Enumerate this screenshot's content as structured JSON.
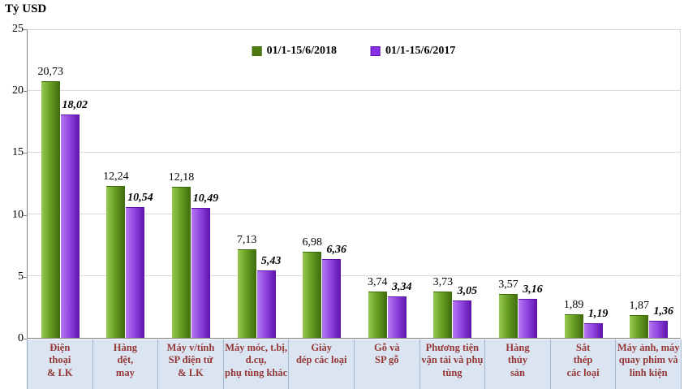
{
  "chart_data": {
    "type": "bar",
    "title": "",
    "ylabel": "Tỷ USD",
    "xlabel": "",
    "ylim": [
      0,
      25
    ],
    "yticks": [
      0,
      5,
      10,
      15,
      20,
      25
    ],
    "grid": true,
    "legend_position": "top-center",
    "categories": [
      "Điện thoại & LK",
      "Hàng dệt, may",
      "Máy v/tính SP điện tử & LK",
      "Máy móc, t.bị, d.cụ, phụ tùng khác",
      "Giày dép các loại",
      "Gỗ và SP gỗ",
      "Phương tiện vận tải và phụ tùng",
      "Hàng thủy sản",
      "Sắt thép các loại",
      "Máy ảnh, máy quay phim và linh kiện"
    ],
    "category_lines": [
      [
        "Điện",
        "thoại",
        "& LK"
      ],
      [
        "Hàng",
        "dệt,",
        "may"
      ],
      [
        "Máy v/tính",
        "SP điện tử",
        "& LK"
      ],
      [
        "Máy móc, t.bị,",
        "d.cụ,",
        "phụ tùng khác"
      ],
      [
        "Giày",
        "dép các loại"
      ],
      [
        "Gỗ và",
        "SP gỗ"
      ],
      [
        "Phương tiện",
        "vận tải và phụ",
        "tùng"
      ],
      [
        "Hàng",
        "thủy",
        "sản"
      ],
      [
        "Sắt",
        "thép",
        "các loại"
      ],
      [
        "Máy ảnh, máy",
        "quay phim và",
        "linh kiện"
      ]
    ],
    "series": [
      {
        "name": "01/1-15/6/2018",
        "values": [
          20.73,
          12.24,
          12.18,
          7.13,
          6.98,
          3.74,
          3.73,
          3.57,
          1.89,
          1.87
        ],
        "labels": [
          "20,73",
          "12,24",
          "12,18",
          "7,13",
          "6,98",
          "3,74",
          "3,73",
          "3,57",
          "1,89",
          "1,87"
        ],
        "color_light": "#97c94f",
        "color_mid": "#68a024",
        "color_dark": "#3f6b0c",
        "swatch": "#4e7a0f"
      },
      {
        "name": "01/1-15/6/2017",
        "values": [
          18.02,
          10.54,
          10.49,
          5.43,
          6.36,
          3.34,
          3.05,
          3.16,
          1.19,
          1.36
        ],
        "labels": [
          "18,02",
          "10,54",
          "10,49",
          "5,43",
          "6,36",
          "3,34",
          "3,05",
          "3,16",
          "1,19",
          "1,36"
        ],
        "color_light": "#b379f2",
        "color_mid": "#9146e0",
        "color_dark": "#5f13ad",
        "swatch": "#8a2fe8"
      }
    ]
  },
  "colors": {
    "axis": "#808080",
    "gridline": "#d9d9d9",
    "category_band_bg": "#dbe5f1",
    "category_text": "#953735",
    "series_2018": "#4e7a0f",
    "series_2017": "#8a2fe8"
  }
}
